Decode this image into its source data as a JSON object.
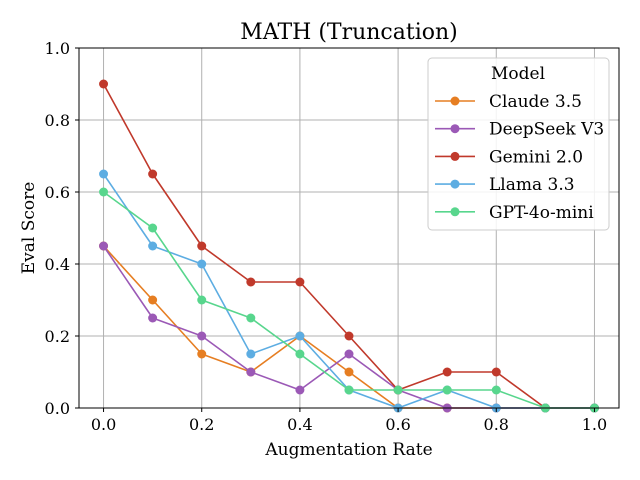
{
  "chart_data": {
    "type": "line",
    "title": "MATH (Truncation)",
    "xlabel": "Augmentation Rate",
    "ylabel": "Eval Score",
    "xlim": [
      -0.05,
      1.05
    ],
    "ylim": [
      0.0,
      1.0
    ],
    "x": [
      0.0,
      0.1,
      0.2,
      0.3,
      0.4,
      0.5,
      0.6,
      0.7,
      0.8,
      0.9,
      1.0
    ],
    "x_ticks": [
      "0.0",
      "0.2",
      "0.4",
      "0.6",
      "0.8",
      "1.0"
    ],
    "y_ticks": [
      "0.0",
      "0.2",
      "0.4",
      "0.6",
      "0.8",
      "1.0"
    ],
    "grid": true,
    "legend": {
      "title": "Model",
      "position": "top-right"
    },
    "series": [
      {
        "name": "Claude 3.5",
        "color": "#e67e22",
        "values": [
          0.45,
          0.3,
          0.15,
          0.1,
          0.2,
          0.1,
          0.0,
          0.0,
          0.0,
          0.0,
          0.0
        ]
      },
      {
        "name": "DeepSeek V3",
        "color": "#9b59b6",
        "values": [
          0.45,
          0.25,
          0.2,
          0.1,
          0.05,
          0.15,
          0.05,
          0.0,
          0.0,
          0.0,
          0.0
        ]
      },
      {
        "name": "Gemini 2.0",
        "color": "#c0392b",
        "values": [
          0.9,
          0.65,
          0.45,
          0.35,
          0.35,
          0.2,
          0.05,
          0.1,
          0.1,
          0.0,
          0.0
        ]
      },
      {
        "name": "Llama 3.3",
        "color": "#5dade2",
        "values": [
          0.65,
          0.45,
          0.4,
          0.15,
          0.2,
          0.05,
          0.0,
          0.05,
          0.0,
          0.0,
          0.0
        ]
      },
      {
        "name": "GPT-4o-mini",
        "color": "#58d68d",
        "values": [
          0.6,
          0.5,
          0.3,
          0.25,
          0.15,
          0.05,
          0.05,
          0.05,
          0.05,
          0.0,
          0.0
        ]
      }
    ]
  }
}
